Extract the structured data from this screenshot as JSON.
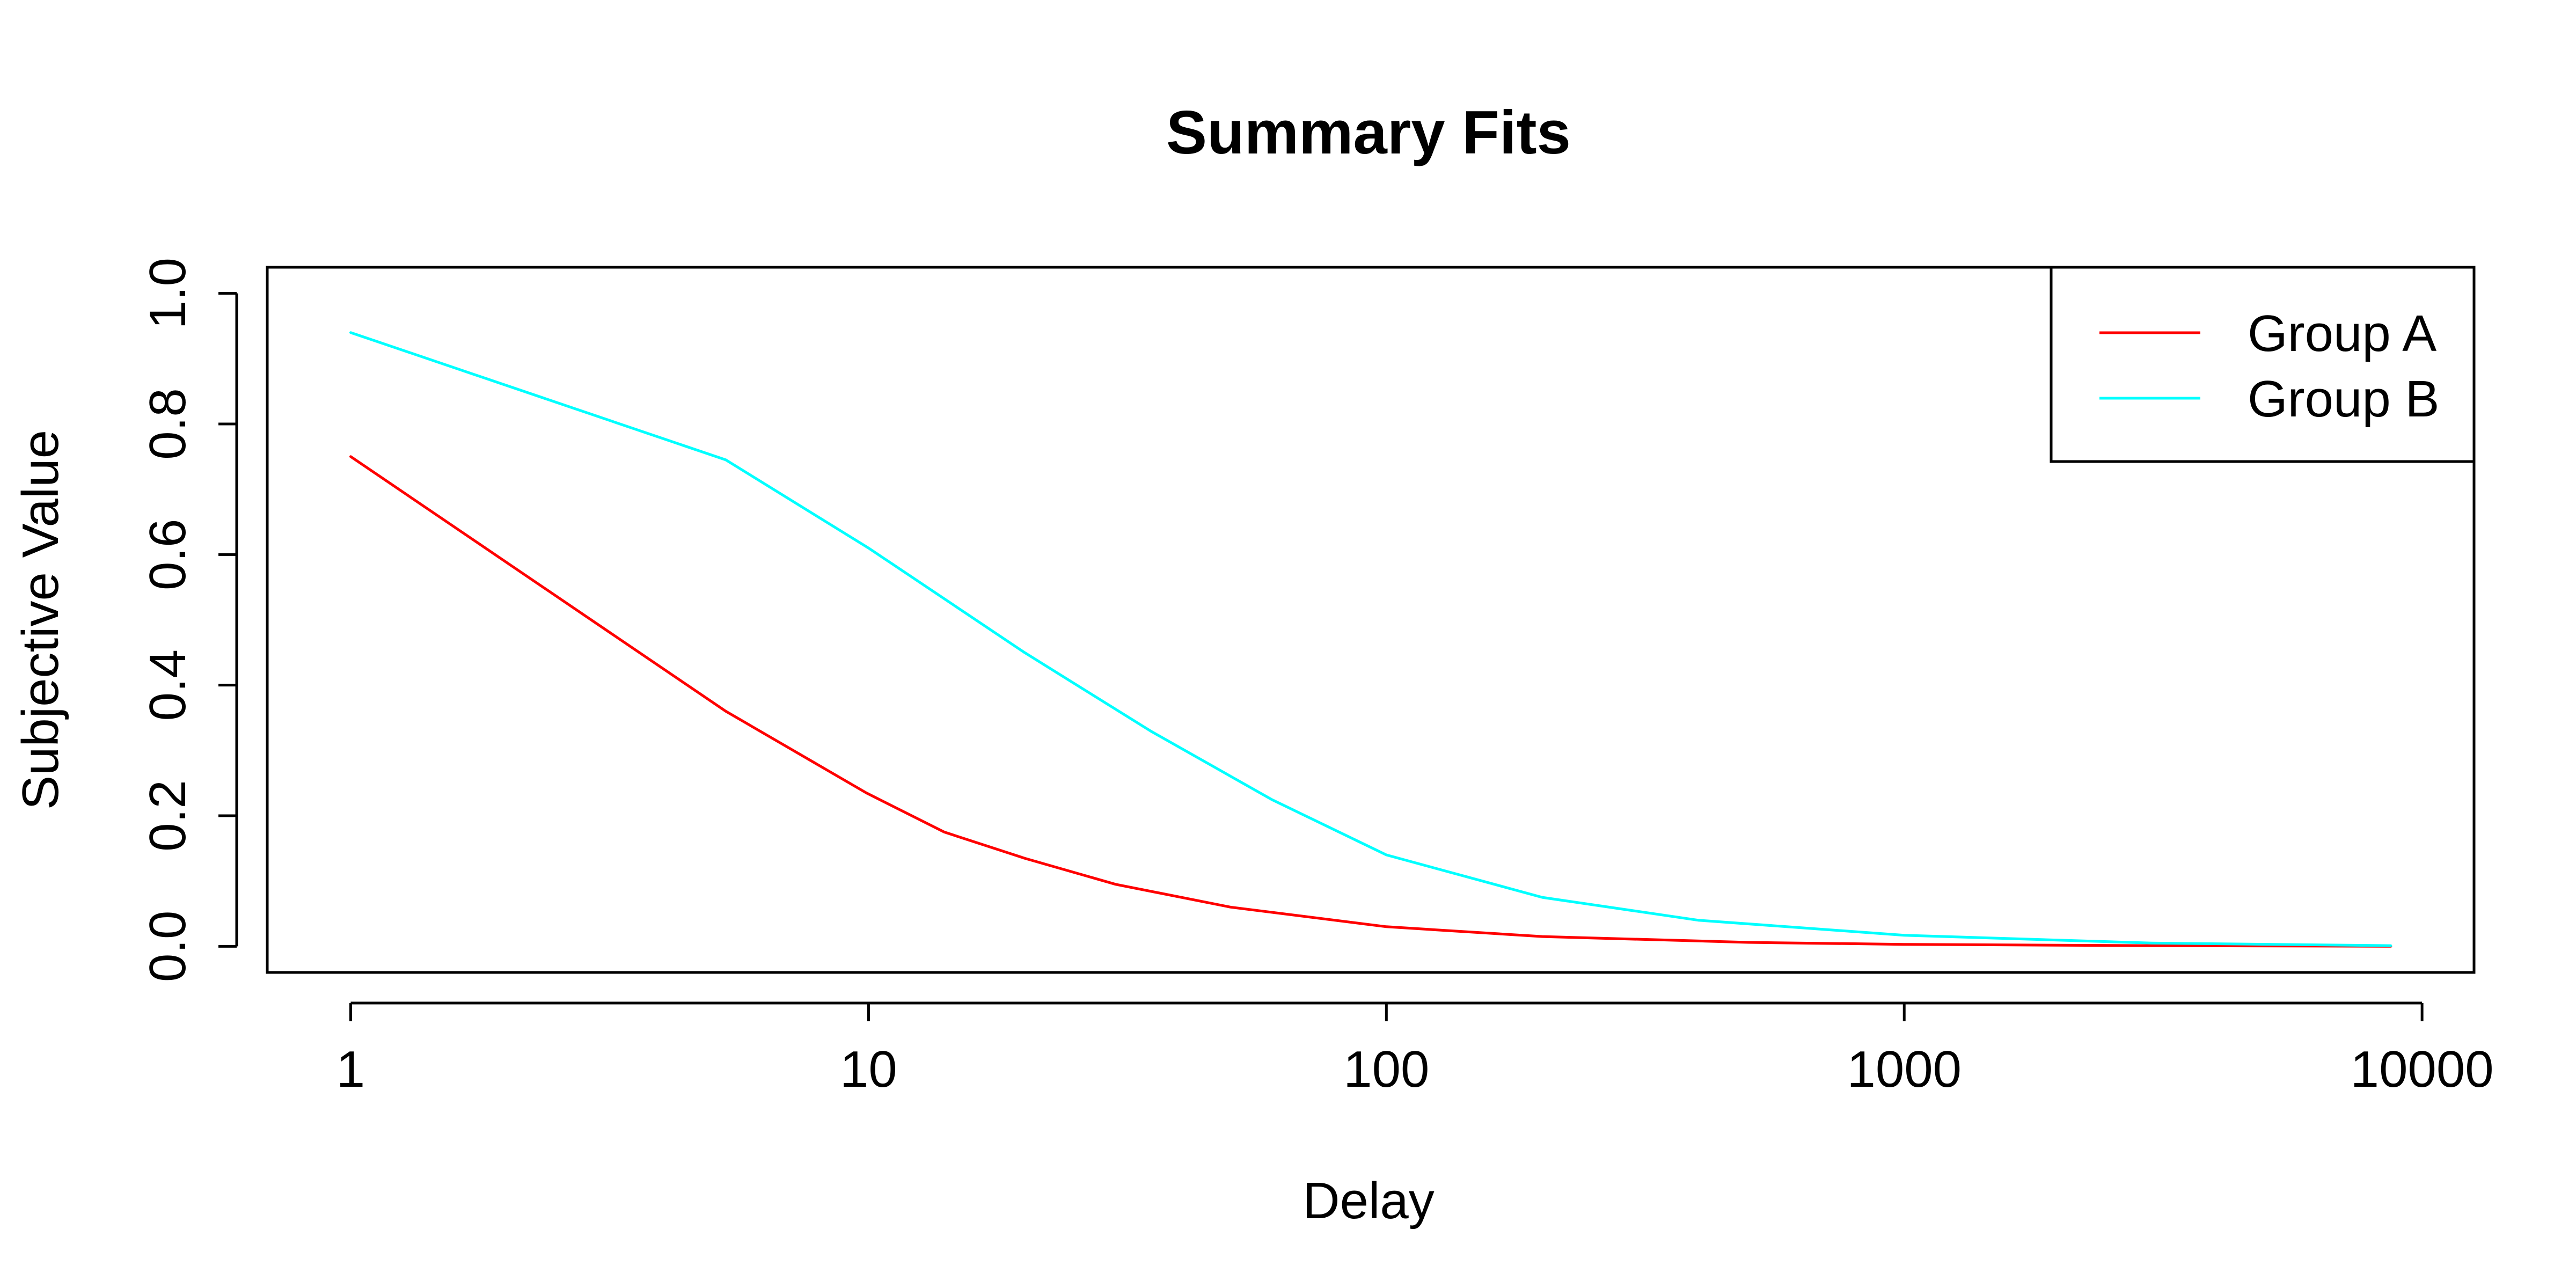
{
  "chart_data": {
    "type": "line",
    "title": "Summary Fits",
    "xlabel": "Delay",
    "ylabel": "Subjective Value",
    "x_scale": "log10",
    "xlim": [
      0.69,
      12600
    ],
    "ylim": [
      -0.04,
      1.04
    ],
    "grid": false,
    "legend_position": "top-right",
    "x_ticks": [
      {
        "value": 1,
        "label": "1"
      },
      {
        "value": 10,
        "label": "10"
      },
      {
        "value": 100,
        "label": "100"
      },
      {
        "value": 1000,
        "label": "1000"
      },
      {
        "value": 10000,
        "label": "10000"
      }
    ],
    "y_ticks": [
      {
        "value": 0.0,
        "label": "0.0"
      },
      {
        "value": 0.2,
        "label": "0.2"
      },
      {
        "value": 0.4,
        "label": "0.4"
      },
      {
        "value": 0.6,
        "label": "0.6"
      },
      {
        "value": 0.8,
        "label": "0.8"
      },
      {
        "value": 1.0,
        "label": "1.0"
      }
    ],
    "series": [
      {
        "name": "Group A",
        "color": "#ff0000",
        "points": [
          [
            1,
            0.75
          ],
          [
            5.3,
            0.36
          ],
          [
            9.9,
            0.235
          ],
          [
            14,
            0.175
          ],
          [
            20,
            0.135
          ],
          [
            30,
            0.095
          ],
          [
            50,
            0.06
          ],
          [
            100,
            0.03
          ],
          [
            200,
            0.015
          ],
          [
            500,
            0.006
          ],
          [
            1000,
            0.003
          ],
          [
            3000,
            0.001
          ],
          [
            8700,
            0.0
          ]
        ]
      },
      {
        "name": "Group B",
        "color": "#00ffff",
        "points": [
          [
            1,
            0.94
          ],
          [
            5.3,
            0.745
          ],
          [
            10,
            0.61
          ],
          [
            20,
            0.45
          ],
          [
            35,
            0.33
          ],
          [
            60,
            0.225
          ],
          [
            100,
            0.14
          ],
          [
            200,
            0.075
          ],
          [
            400,
            0.04
          ],
          [
            1000,
            0.017
          ],
          [
            3000,
            0.005
          ],
          [
            8700,
            0.001
          ]
        ]
      }
    ]
  }
}
